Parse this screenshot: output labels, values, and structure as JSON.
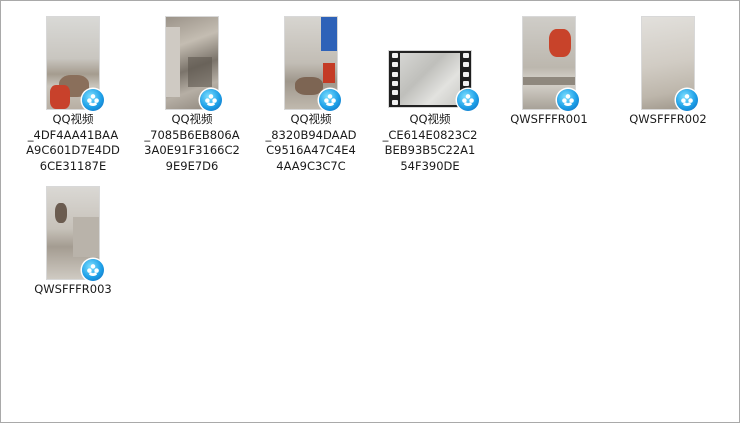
{
  "files": [
    {
      "name_lines": [
        "QQ视频",
        "_4DF4AA41BAA",
        "A9C601D7E4DD",
        "6CE31187E"
      ],
      "icon": "video-thumbnail",
      "badge": "qq-video-player-icon"
    },
    {
      "name_lines": [
        "QQ视频",
        "_7085B6EB806A",
        "3A0E91F3166C2",
        "9E9E7D6"
      ],
      "icon": "video-thumbnail",
      "badge": "qq-video-player-icon"
    },
    {
      "name_lines": [
        "QQ视频",
        "_8320B94DAAD",
        "C9516A47C4E4",
        "4AA9C3C7C"
      ],
      "icon": "video-thumbnail",
      "badge": "qq-video-player-icon"
    },
    {
      "name_lines": [
        "QQ视频",
        "_CE614E0823C2",
        "BEB93B5C22A1",
        "54F390DE"
      ],
      "icon": "filmstrip-thumbnail",
      "badge": "qq-video-player-icon"
    },
    {
      "name_lines": [
        "QWSFFFR001"
      ],
      "icon": "video-thumbnail",
      "badge": "qq-video-player-icon"
    },
    {
      "name_lines": [
        "QWSFFFR002"
      ],
      "icon": "video-thumbnail",
      "badge": "qq-video-player-icon"
    },
    {
      "name_lines": [
        "QWSFFFR003"
      ],
      "icon": "video-thumbnail",
      "badge": "qq-video-player-icon"
    }
  ]
}
